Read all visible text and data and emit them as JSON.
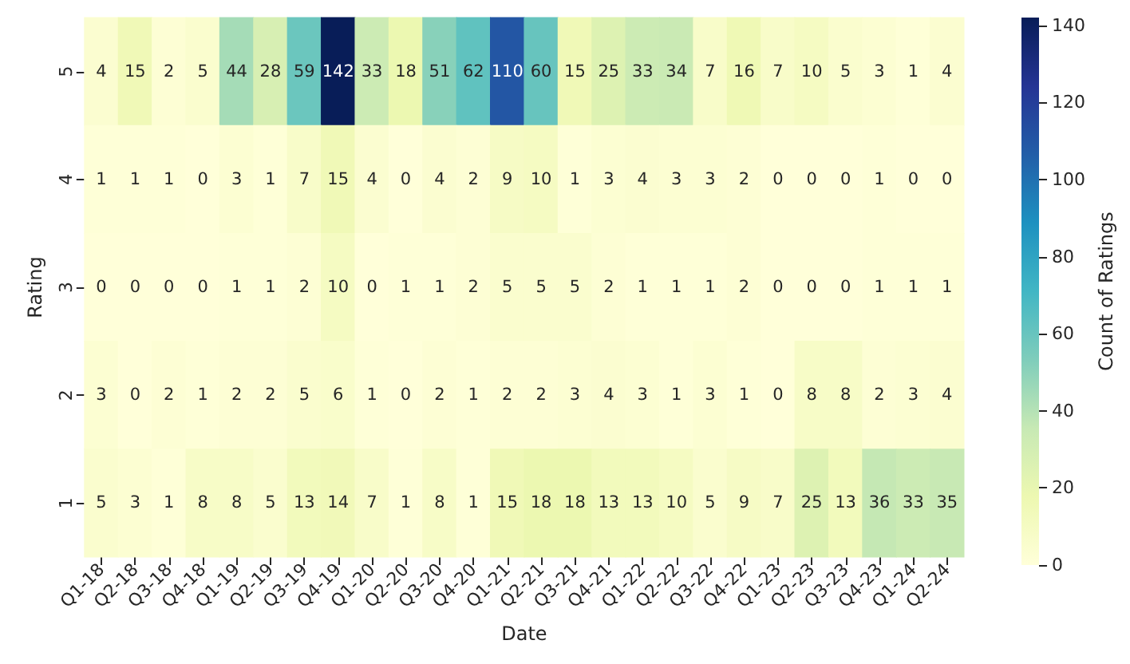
{
  "chart_data": {
    "type": "heatmap",
    "xlabel": "Date",
    "ylabel": "Rating",
    "clabel": "Count of Ratings",
    "categories": [
      "Q1-18",
      "Q2-18",
      "Q3-18",
      "Q4-18",
      "Q1-19",
      "Q2-19",
      "Q3-19",
      "Q4-19",
      "Q1-20",
      "Q2-20",
      "Q3-20",
      "Q4-20",
      "Q1-21",
      "Q2-21",
      "Q3-21",
      "Q4-21",
      "Q1-22",
      "Q2-22",
      "Q3-22",
      "Q4-22",
      "Q1-23",
      "Q2-23",
      "Q3-23",
      "Q4-23",
      "Q1-24",
      "Q2-24"
    ],
    "y_categories": [
      "5",
      "4",
      "3",
      "2",
      "1"
    ],
    "cells": [
      [
        4,
        15,
        2,
        5,
        44,
        28,
        59,
        142,
        33,
        18,
        51,
        62,
        110,
        60,
        15,
        25,
        33,
        34,
        7,
        16,
        7,
        10,
        5,
        3,
        1,
        4
      ],
      [
        1,
        1,
        1,
        0,
        3,
        1,
        7,
        15,
        4,
        0,
        4,
        2,
        9,
        10,
        1,
        3,
        4,
        3,
        3,
        2,
        0,
        0,
        0,
        1,
        0,
        0
      ],
      [
        0,
        0,
        0,
        0,
        1,
        1,
        2,
        10,
        0,
        1,
        1,
        2,
        5,
        5,
        5,
        2,
        1,
        1,
        1,
        2,
        0,
        0,
        0,
        1,
        1,
        1
      ],
      [
        3,
        0,
        2,
        1,
        2,
        2,
        5,
        6,
        1,
        0,
        2,
        1,
        2,
        2,
        3,
        4,
        3,
        1,
        3,
        1,
        0,
        8,
        8,
        2,
        3,
        4
      ],
      [
        5,
        3,
        1,
        8,
        8,
        5,
        13,
        14,
        7,
        1,
        8,
        1,
        15,
        18,
        18,
        13,
        13,
        10,
        5,
        9,
        7,
        25,
        13,
        36,
        33,
        35
      ]
    ],
    "clim": [
      0,
      142
    ],
    "cticks": [
      0,
      20,
      40,
      60,
      80,
      100,
      120,
      140
    ],
    "data_labels": true
  }
}
